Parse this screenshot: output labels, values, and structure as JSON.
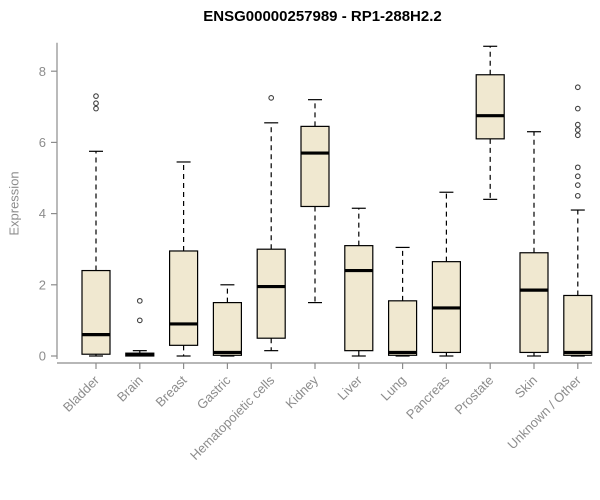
{
  "chart_data": {
    "type": "boxplot",
    "title": "ENSG00000257989 - RP1-288H2.2",
    "ylabel": "Expression",
    "ylim": [
      0,
      8.8
    ],
    "yticks": [
      0,
      2,
      4,
      6,
      8
    ],
    "categories": [
      "Bladder",
      "Brain",
      "Breast",
      "Gastric",
      "Hematopoietic cells",
      "Kidney",
      "Liver",
      "Lung",
      "Pancreas",
      "Prostate",
      "Skin",
      "Unknown / Other"
    ],
    "series": [
      {
        "name": "Bladder",
        "low": 0.0,
        "q1": 0.05,
        "median": 0.6,
        "q3": 2.4,
        "high": 5.75,
        "outliers": [
          6.95,
          7.1,
          7.3
        ]
      },
      {
        "name": "Brain",
        "low": 0.0,
        "q1": 0.0,
        "median": 0.03,
        "q3": 0.08,
        "high": 0.15,
        "outliers": [
          1.0,
          1.55
        ]
      },
      {
        "name": "Breast",
        "low": 0.0,
        "q1": 0.3,
        "median": 0.9,
        "q3": 2.95,
        "high": 5.45,
        "outliers": []
      },
      {
        "name": "Gastric",
        "low": 0.0,
        "q1": 0.02,
        "median": 0.1,
        "q3": 1.5,
        "high": 2.0,
        "outliers": []
      },
      {
        "name": "Hematopoietic cells",
        "low": 0.15,
        "q1": 0.5,
        "median": 1.95,
        "q3": 3.0,
        "high": 6.55,
        "outliers": [
          7.25
        ]
      },
      {
        "name": "Kidney",
        "low": 1.5,
        "q1": 4.2,
        "median": 5.7,
        "q3": 6.45,
        "high": 7.2,
        "outliers": []
      },
      {
        "name": "Liver",
        "low": 0.0,
        "q1": 0.15,
        "median": 2.4,
        "q3": 3.1,
        "high": 4.15,
        "outliers": []
      },
      {
        "name": "Lung",
        "low": 0.0,
        "q1": 0.02,
        "median": 0.1,
        "q3": 1.55,
        "high": 3.05,
        "outliers": []
      },
      {
        "name": "Pancreas",
        "low": 0.0,
        "q1": 0.1,
        "median": 1.35,
        "q3": 2.65,
        "high": 4.6,
        "outliers": []
      },
      {
        "name": "Prostate",
        "low": 4.4,
        "q1": 6.1,
        "median": 6.75,
        "q3": 7.9,
        "high": 8.7,
        "outliers": []
      },
      {
        "name": "Skin",
        "low": 0.0,
        "q1": 0.1,
        "median": 1.85,
        "q3": 2.9,
        "high": 6.3,
        "outliers": []
      },
      {
        "name": "Unknown / Other",
        "low": 0.0,
        "q1": 0.02,
        "median": 0.1,
        "q3": 1.7,
        "high": 4.1,
        "outliers": [
          4.5,
          4.8,
          5.05,
          5.3,
          6.2,
          6.35,
          6.5,
          6.95,
          7.55
        ]
      }
    ],
    "colors": {
      "box_fill": "#F0E8D0",
      "box_stroke": "#000000",
      "median": "#000000",
      "axis": "#8C8C8C",
      "outlier": "#404040",
      "background": "#FFFFFF"
    },
    "legend": "none",
    "grid": "off"
  }
}
